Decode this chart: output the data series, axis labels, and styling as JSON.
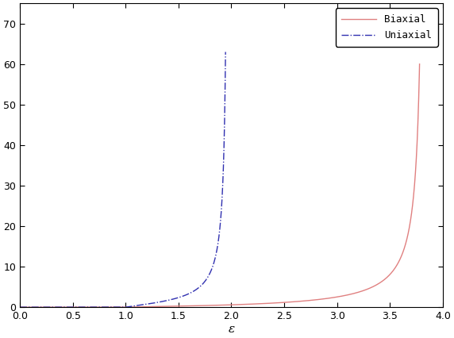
{
  "title": "",
  "xlabel": "ε",
  "ylabel": "",
  "xlim": [
    0,
    4
  ],
  "ylim": [
    0,
    75
  ],
  "yticks": [
    0,
    10,
    20,
    30,
    40,
    50,
    60,
    70
  ],
  "xticks": [
    0,
    0.5,
    1,
    1.5,
    2,
    2.5,
    3,
    3.5,
    4
  ],
  "biaxial_color": "#e08080",
  "uniaxial_color": "#3030b0",
  "biaxial_label": "Biaxial",
  "uniaxial_label": "Uniaxial",
  "lm_biaxial": 3.83,
  "lm_uniaxial": 1.97,
  "mu": 1.0,
  "biaxial_xmax": 3.78,
  "uniaxial_xmax": 1.945,
  "biaxial_scale": 60.0,
  "uniaxial_scale": 63.0
}
